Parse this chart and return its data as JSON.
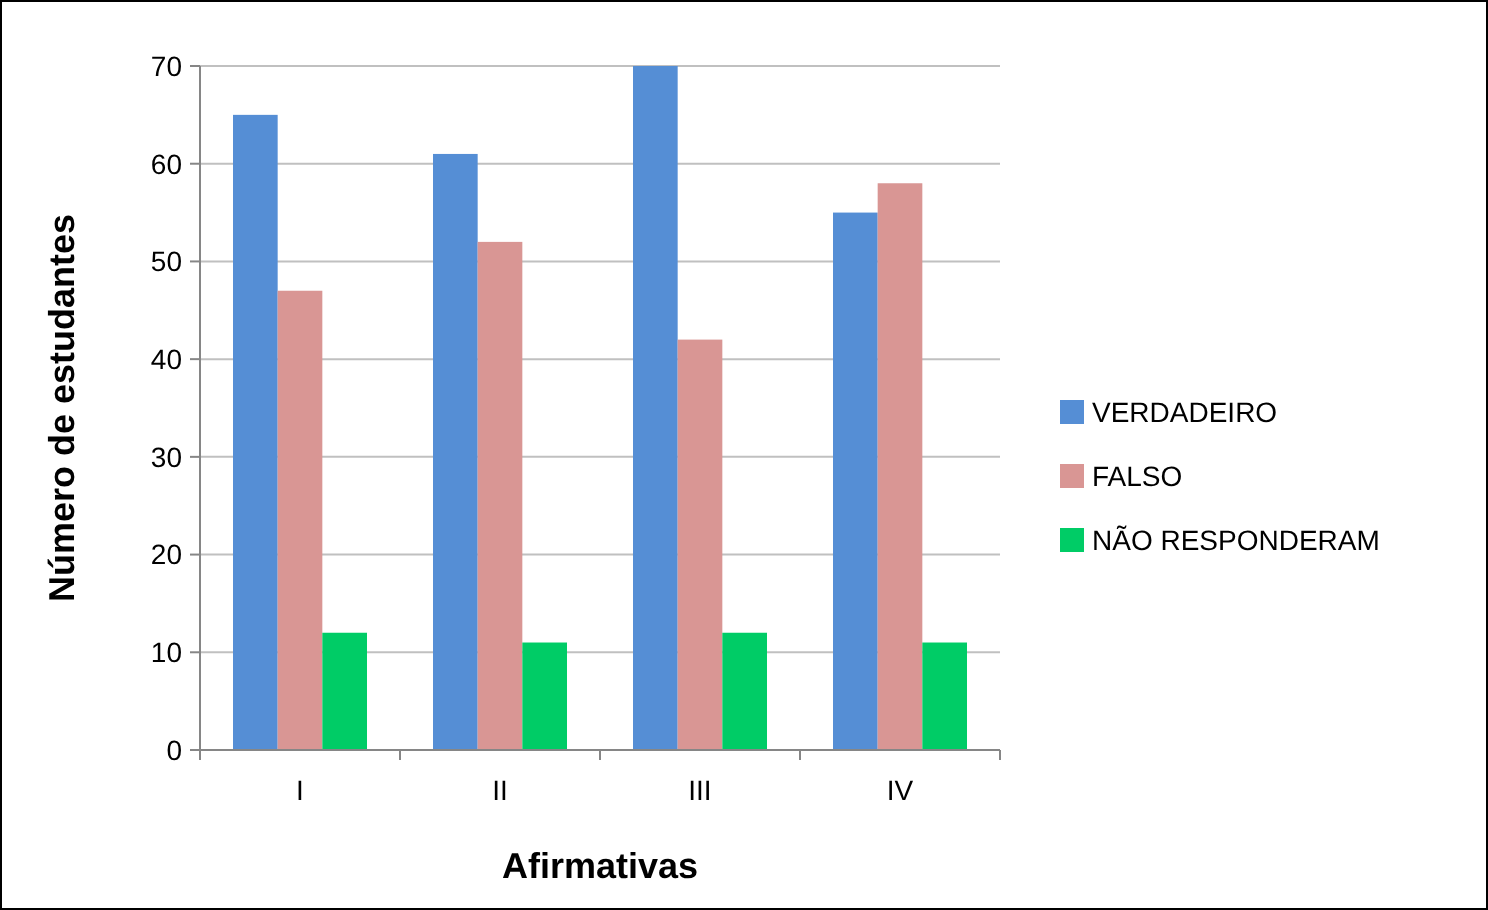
{
  "chart_data": {
    "type": "bar",
    "xlabel": "Afirmativas",
    "ylabel": "Número de estudantes",
    "categories": [
      "I",
      "II",
      "III",
      "IV"
    ],
    "series": [
      {
        "name": "VERDADEIRO",
        "color": "#558ed5",
        "values": [
          65,
          61,
          70,
          55
        ]
      },
      {
        "name": "FALSO",
        "color": "#d99694",
        "values": [
          47,
          52,
          42,
          58
        ]
      },
      {
        "name": "NÃO RESPONDERAM",
        "color": "#00cc66",
        "values": [
          12,
          11,
          12,
          11
        ]
      }
    ],
    "ylim": [
      0,
      70
    ],
    "yticks": [
      0,
      10,
      20,
      30,
      40,
      50,
      60,
      70
    ],
    "grid": "y",
    "legend": "right"
  }
}
